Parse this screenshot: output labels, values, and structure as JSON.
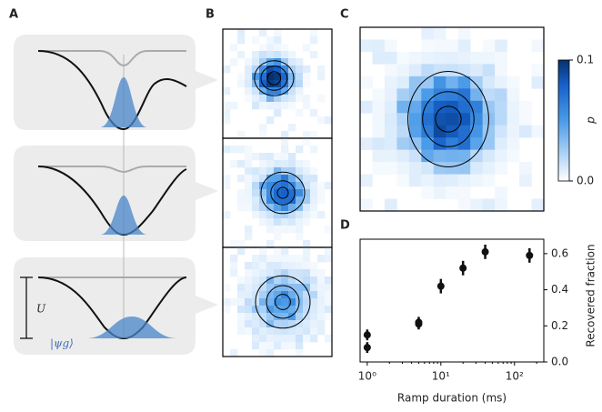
{
  "panel_labels": [
    "A",
    "B",
    "C",
    "D"
  ],
  "panel_a": {
    "potential_label": "U",
    "state_label": "|ψg⟩"
  },
  "colorbar": {
    "label": "p",
    "lim": [
      0,
      0.1
    ],
    "ticks": [
      {
        "value": 0,
        "label": "0.0"
      },
      {
        "value": 0.1,
        "label": "0.1"
      }
    ]
  },
  "chart_data": {
    "type": "scatter",
    "xlabel": "Ramp duration (ms)",
    "ylabel": "Recovered fraction",
    "x": [
      1,
      1,
      5,
      5,
      10,
      20,
      40,
      160
    ],
    "values": [
      0.15,
      0.08,
      0.22,
      0.21,
      0.42,
      0.52,
      0.61,
      0.59
    ],
    "errors": [
      0.03,
      0.03,
      0.03,
      0.03,
      0.04,
      0.04,
      0.04,
      0.04
    ],
    "color": "#111111",
    "log_x": true,
    "xlim": [
      0.8,
      250
    ],
    "ylim": [
      0,
      0.68
    ],
    "xticks": [
      {
        "value": 1,
        "label": "10⁰"
      },
      {
        "value": 10,
        "label": "10¹"
      },
      {
        "value": 100,
        "label": "10²"
      }
    ],
    "yticks": [
      {
        "value": 0,
        "label": "0.0"
      },
      {
        "value": 0.2,
        "label": "0.2"
      },
      {
        "value": 0.4,
        "label": "0.4"
      },
      {
        "value": 0.6,
        "label": "0.6"
      }
    ]
  }
}
